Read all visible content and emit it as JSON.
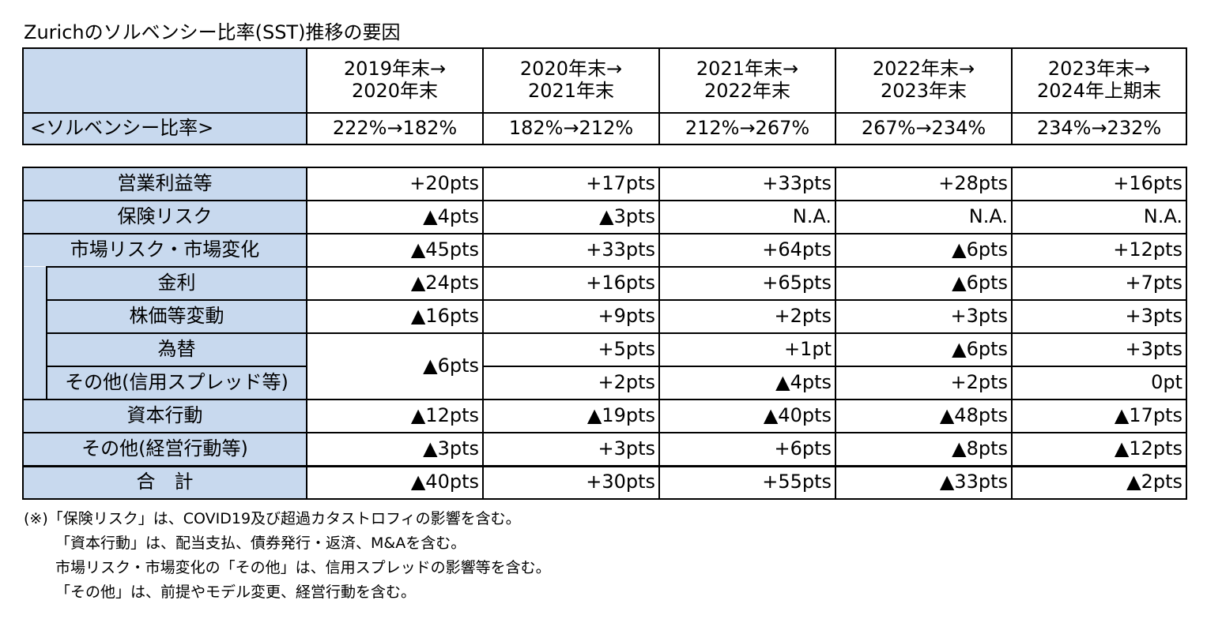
{
  "title": "Zurichのソルベンシー比率(SST)推移の要因",
  "header": {
    "periods": [
      {
        "line1": "2019年末→",
        "line2": "2020年末"
      },
      {
        "line1": "2020年末→",
        "line2": "2021年末"
      },
      {
        "line1": "2021年末→",
        "line2": "2022年末"
      },
      {
        "line1": "2022年末→",
        "line2": "2023年末"
      },
      {
        "line1": "2023年末→",
        "line2": "2024年上期末"
      }
    ],
    "ratio_label": "<ソルベンシー比率>",
    "ratios": [
      "222%→182%",
      "182%→212%",
      "212%→267%",
      "267%→234%",
      "234%→232%"
    ]
  },
  "rows": {
    "operating": {
      "label": "営業利益等",
      "values": [
        "+20pts",
        "+17pts",
        "+33pts",
        "+28pts",
        "+16pts"
      ]
    },
    "insurance": {
      "label": "保険リスク",
      "values": [
        "▲4pts",
        "▲3pts",
        "N.A.",
        "N.A.",
        "N.A."
      ]
    },
    "market": {
      "label": "市場リスク・市場変化",
      "values": [
        "▲45pts",
        "+33pts",
        "+64pts",
        "▲6pts",
        "+12pts"
      ]
    },
    "interest": {
      "label": "金利",
      "values": [
        "▲24pts",
        "+16pts",
        "+65pts",
        "▲6pts",
        "+7pts"
      ]
    },
    "equity": {
      "label": "株価等変動",
      "values": [
        "▲16pts",
        "+9pts",
        "+2pts",
        "+3pts",
        "+3pts"
      ]
    },
    "fx": {
      "label": "為替",
      "values": [
        "+5pts",
        "+1pt",
        "▲6pts",
        "+3pts"
      ]
    },
    "fx_other_combined": "▲6pts",
    "other_credit": {
      "label": "その他(信用スプレッド等)",
      "values": [
        "+2pts",
        "▲4pts",
        "+2pts",
        "0pt"
      ]
    },
    "capital": {
      "label": "資本行動",
      "values": [
        "▲12pts",
        "▲19pts",
        "▲40pts",
        "▲48pts",
        "▲17pts"
      ]
    },
    "other_mgmt": {
      "label": "その他(経営行動等)",
      "values": [
        "▲3pts",
        "+3pts",
        "+6pts",
        "▲8pts",
        "▲12pts"
      ]
    },
    "total": {
      "label": "合　計",
      "values": [
        "▲40pts",
        "+30pts",
        "+55pts",
        "▲33pts",
        "▲2pts"
      ]
    }
  },
  "notes": [
    "(※)「保険リスク」は、COVID19及び超過カタストロフィの影響を含む。",
    "「資本行動」は、配当支払、債券発行・返済、M&Aを含む。",
    "市場リスク・市場変化の「その他」は、信用スプレッドの影響等を含む。",
    "「その他」は、前提やモデル変更、経営行動を含む。"
  ],
  "colors": {
    "label_fill": "#c8d9ee",
    "border": "#000000"
  }
}
